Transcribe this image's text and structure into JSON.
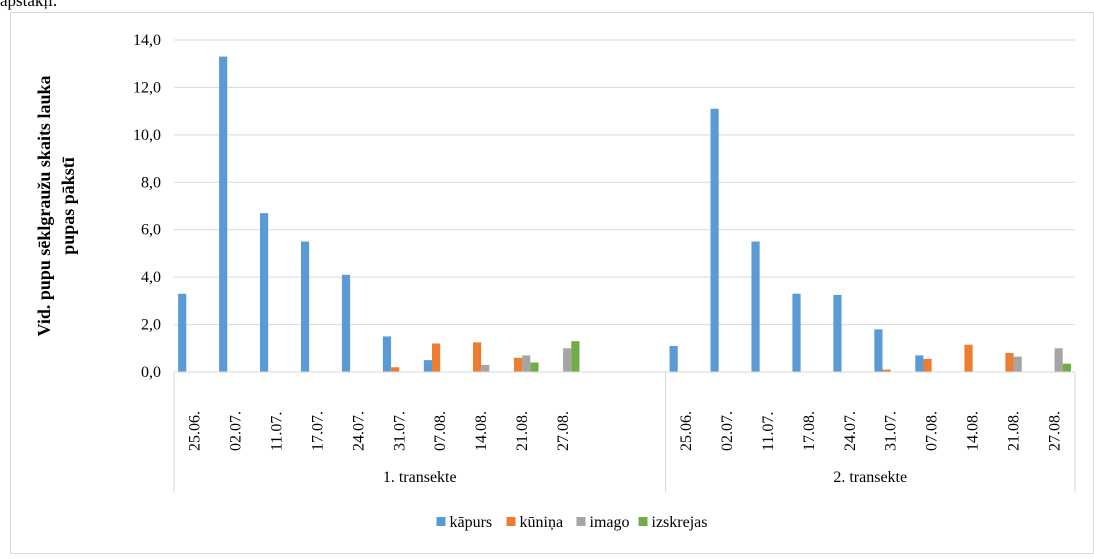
{
  "top_text": "apstākļi.",
  "chart_data": {
    "type": "bar",
    "y_label": [
      "Vid. pupu sēklgraužu skaits lauka",
      "pupas pākstī"
    ],
    "groups": [
      {
        "name": "1. transekte",
        "categories": [
          "25.06.",
          "02.07.",
          "11.07.",
          "17.07.",
          "24.07.",
          "31.07.",
          "07.08.",
          "14.08.",
          "21.08.",
          "27.08.",
          null,
          null
        ]
      },
      {
        "name": "2. transekte",
        "categories": [
          "25.06.",
          "02.07.",
          "11.07.",
          "17.08.",
          "24.07.",
          "31.07.",
          "07.08.",
          "14.08.",
          "21.08.",
          "27.08."
        ]
      }
    ],
    "series": [
      {
        "name": "kāpurs",
        "color": "#5b9bd5",
        "values": [
          3.3,
          13.3,
          6.7,
          5.5,
          4.1,
          1.5,
          0.5,
          0,
          0,
          0,
          null,
          null,
          1.1,
          11.1,
          5.5,
          3.3,
          3.25,
          1.8,
          0.7,
          0,
          0,
          0
        ]
      },
      {
        "name": "kūniņa",
        "color": "#ed7d31",
        "values": [
          0,
          0,
          0,
          0,
          0,
          0.2,
          1.2,
          1.25,
          0.6,
          0,
          null,
          null,
          0,
          0,
          0,
          0,
          0,
          0.1,
          0.55,
          1.15,
          0.8,
          0
        ]
      },
      {
        "name": "imago",
        "color": "#a5a5a5",
        "values": [
          0,
          0,
          0,
          0,
          0,
          0,
          0,
          0.3,
          0.7,
          1.0,
          null,
          null,
          0,
          0,
          0,
          0,
          0,
          0,
          0,
          0,
          0.65,
          1.0
        ]
      },
      {
        "name": "izskrejas",
        "color": "#70ad47",
        "values": [
          0,
          0,
          0,
          0,
          0,
          0,
          0,
          0,
          0.4,
          1.3,
          null,
          null,
          0,
          0,
          0,
          0,
          0,
          0,
          0,
          0,
          0,
          0.35
        ]
      }
    ],
    "ylim": [
      0,
      14
    ],
    "yticks": [
      {
        "value": 0,
        "label": "0,0"
      },
      {
        "value": 2,
        "label": "2,0"
      },
      {
        "value": 4,
        "label": "4,0"
      },
      {
        "value": 6,
        "label": "6,0"
      },
      {
        "value": 8,
        "label": "8,0"
      },
      {
        "value": 10,
        "label": "10,0"
      },
      {
        "value": 12,
        "label": "12,0"
      },
      {
        "value": 14,
        "label": "14,0"
      }
    ],
    "grid": true,
    "legend": "bottom"
  }
}
